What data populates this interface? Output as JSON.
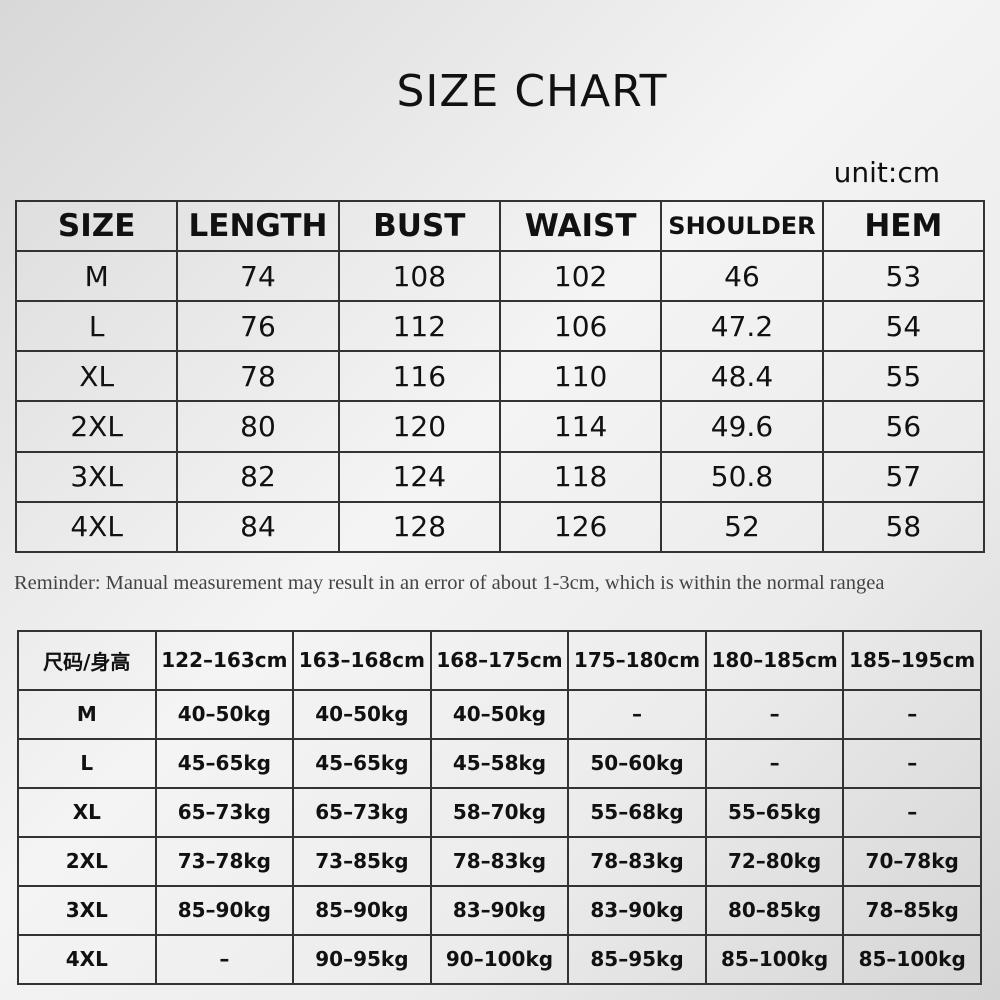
{
  "title": "SIZE CHART",
  "unit": "unit:cm",
  "table1": {
    "headers": [
      "SIZE",
      "LENGTH",
      "BUST",
      "WAIST",
      "SHOULDER",
      "HEM"
    ],
    "rows": [
      [
        "M",
        74,
        108,
        102,
        46,
        53
      ],
      [
        "L",
        76,
        112,
        106,
        47.2,
        54
      ],
      [
        "XL",
        78,
        116,
        110,
        48.4,
        55
      ],
      [
        "2XL",
        80,
        120,
        114,
        49.6,
        56
      ],
      [
        "3XL",
        82,
        124,
        118,
        50.8,
        57
      ],
      [
        "4XL",
        84,
        128,
        126,
        52,
        58
      ]
    ]
  },
  "reminder": "Reminder: Manual measurement may result in an error of about 1-3cm, which is within the normal rangea",
  "table2": {
    "headers": [
      "尺码/身高",
      "122–163cm",
      "163–168cm",
      "168–175cm",
      "175–180cm",
      "180–185cm",
      "185–195cm"
    ],
    "rows": [
      [
        "M",
        "40–50kg",
        "40–50kg",
        "40–50kg",
        "–",
        "–",
        "–"
      ],
      [
        "L",
        "45–65kg",
        "45–65kg",
        "45–58kg",
        "50–60kg",
        "–",
        "–"
      ],
      [
        "XL",
        "65–73kg",
        "65–73kg",
        "58–70kg",
        "55–68kg",
        "55–65kg",
        "–"
      ],
      [
        "2XL",
        "73–78kg",
        "73–85kg",
        "78–83kg",
        "78–83kg",
        "72–80kg",
        "70–78kg"
      ],
      [
        "3XL",
        "85–90kg",
        "85–90kg",
        "83–90kg",
        "83–90kg",
        "80–85kg",
        "78–85kg"
      ],
      [
        "4XL",
        "–",
        "90–95kg",
        "90–100kg",
        "85–95kg",
        "85–100kg",
        "85–100kg"
      ]
    ]
  }
}
